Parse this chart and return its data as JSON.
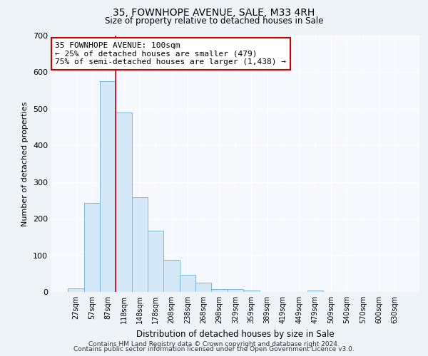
{
  "title": "35, FOWNHOPE AVENUE, SALE, M33 4RH",
  "subtitle": "Size of property relative to detached houses in Sale",
  "xlabel": "Distribution of detached houses by size in Sale",
  "ylabel": "Number of detached properties",
  "bar_labels": [
    "27sqm",
    "57sqm",
    "87sqm",
    "118sqm",
    "148sqm",
    "178sqm",
    "208sqm",
    "238sqm",
    "268sqm",
    "298sqm",
    "329sqm",
    "359sqm",
    "389sqm",
    "419sqm",
    "449sqm",
    "479sqm",
    "509sqm",
    "540sqm",
    "570sqm",
    "600sqm",
    "630sqm"
  ],
  "bar_values": [
    10,
    243,
    575,
    490,
    258,
    168,
    88,
    47,
    25,
    8,
    8,
    4,
    0,
    0,
    0,
    4,
    0,
    0,
    0,
    0,
    0
  ],
  "bar_color": "#d4e8f7",
  "bar_edge_color": "#7ab8d9",
  "vline_x": 2.5,
  "vline_color": "#cc0000",
  "ylim": [
    0,
    700
  ],
  "yticks": [
    0,
    100,
    200,
    300,
    400,
    500,
    600,
    700
  ],
  "annotation_line1": "35 FOWNHOPE AVENUE: 100sqm",
  "annotation_line2": "← 25% of detached houses are smaller (479)",
  "annotation_line3": "75% of semi-detached houses are larger (1,438) →",
  "annotation_box_color": "#ffffff",
  "annotation_box_edgecolor": "#cc0000",
  "footer_line1": "Contains HM Land Registry data © Crown copyright and database right 2024.",
  "footer_line2": "Contains public sector information licensed under the Open Government Licence v3.0.",
  "background_color": "#eef3f8",
  "plot_background_color": "#f5f9fd",
  "grid_color": "#ffffff"
}
